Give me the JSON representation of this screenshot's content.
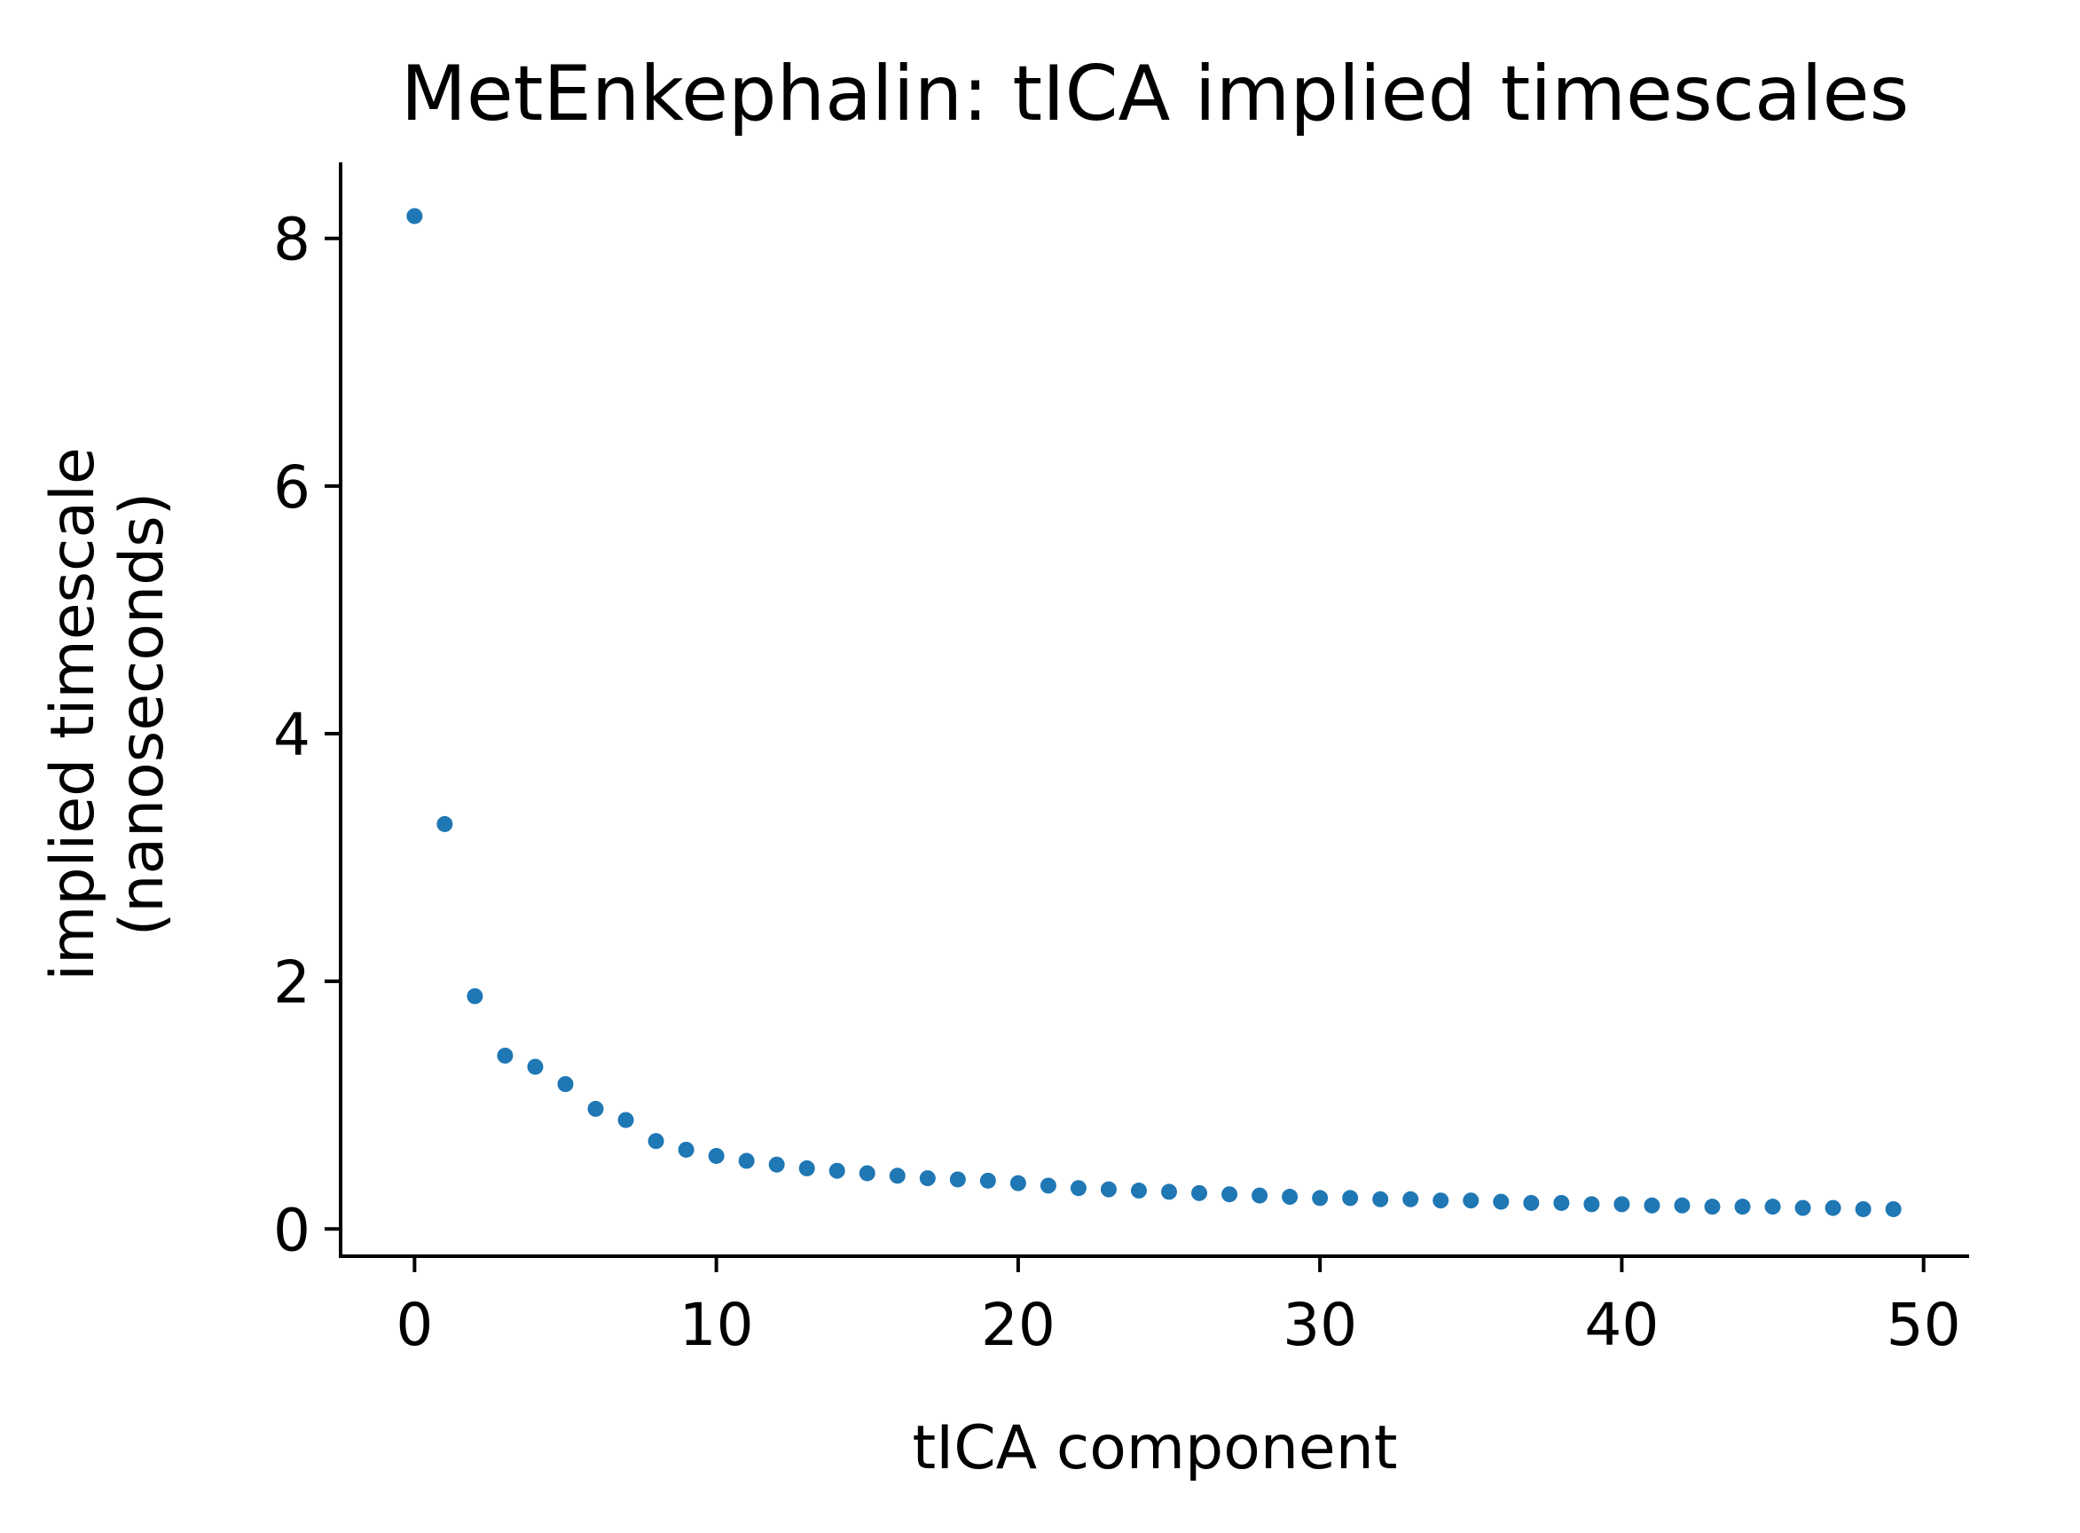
{
  "chart_data": {
    "type": "scatter",
    "title": "MetEnkephalin: tICA implied timescales",
    "xlabel": "tICA component",
    "ylabel": [
      "implied timescale",
      "(nanoseconds)"
    ],
    "xlim": [
      -2.45,
      51.45
    ],
    "ylim": [
      -0.22,
      8.6
    ],
    "xticks": [
      0,
      10,
      20,
      30,
      40,
      50
    ],
    "yticks": [
      0,
      2,
      4,
      6,
      8
    ],
    "grid": false,
    "legend": "none",
    "marker_color": "#1f77b4",
    "x": [
      0,
      1,
      2,
      3,
      4,
      5,
      6,
      7,
      8,
      9,
      10,
      11,
      12,
      13,
      14,
      15,
      16,
      17,
      18,
      19,
      20,
      21,
      22,
      23,
      24,
      25,
      26,
      27,
      28,
      29,
      30,
      31,
      32,
      33,
      34,
      35,
      36,
      37,
      38,
      39,
      40,
      41,
      42,
      43,
      44,
      45,
      46,
      47,
      48,
      49
    ],
    "y": [
      8.18,
      3.27,
      1.88,
      1.4,
      1.31,
      1.17,
      0.97,
      0.88,
      0.71,
      0.64,
      0.59,
      0.55,
      0.52,
      0.49,
      0.47,
      0.45,
      0.43,
      0.41,
      0.4,
      0.39,
      0.37,
      0.35,
      0.33,
      0.32,
      0.31,
      0.3,
      0.29,
      0.28,
      0.27,
      0.26,
      0.25,
      0.25,
      0.24,
      0.24,
      0.23,
      0.23,
      0.22,
      0.21,
      0.21,
      0.2,
      0.2,
      0.19,
      0.19,
      0.18,
      0.18,
      0.18,
      0.17,
      0.17,
      0.16,
      0.16
    ]
  }
}
